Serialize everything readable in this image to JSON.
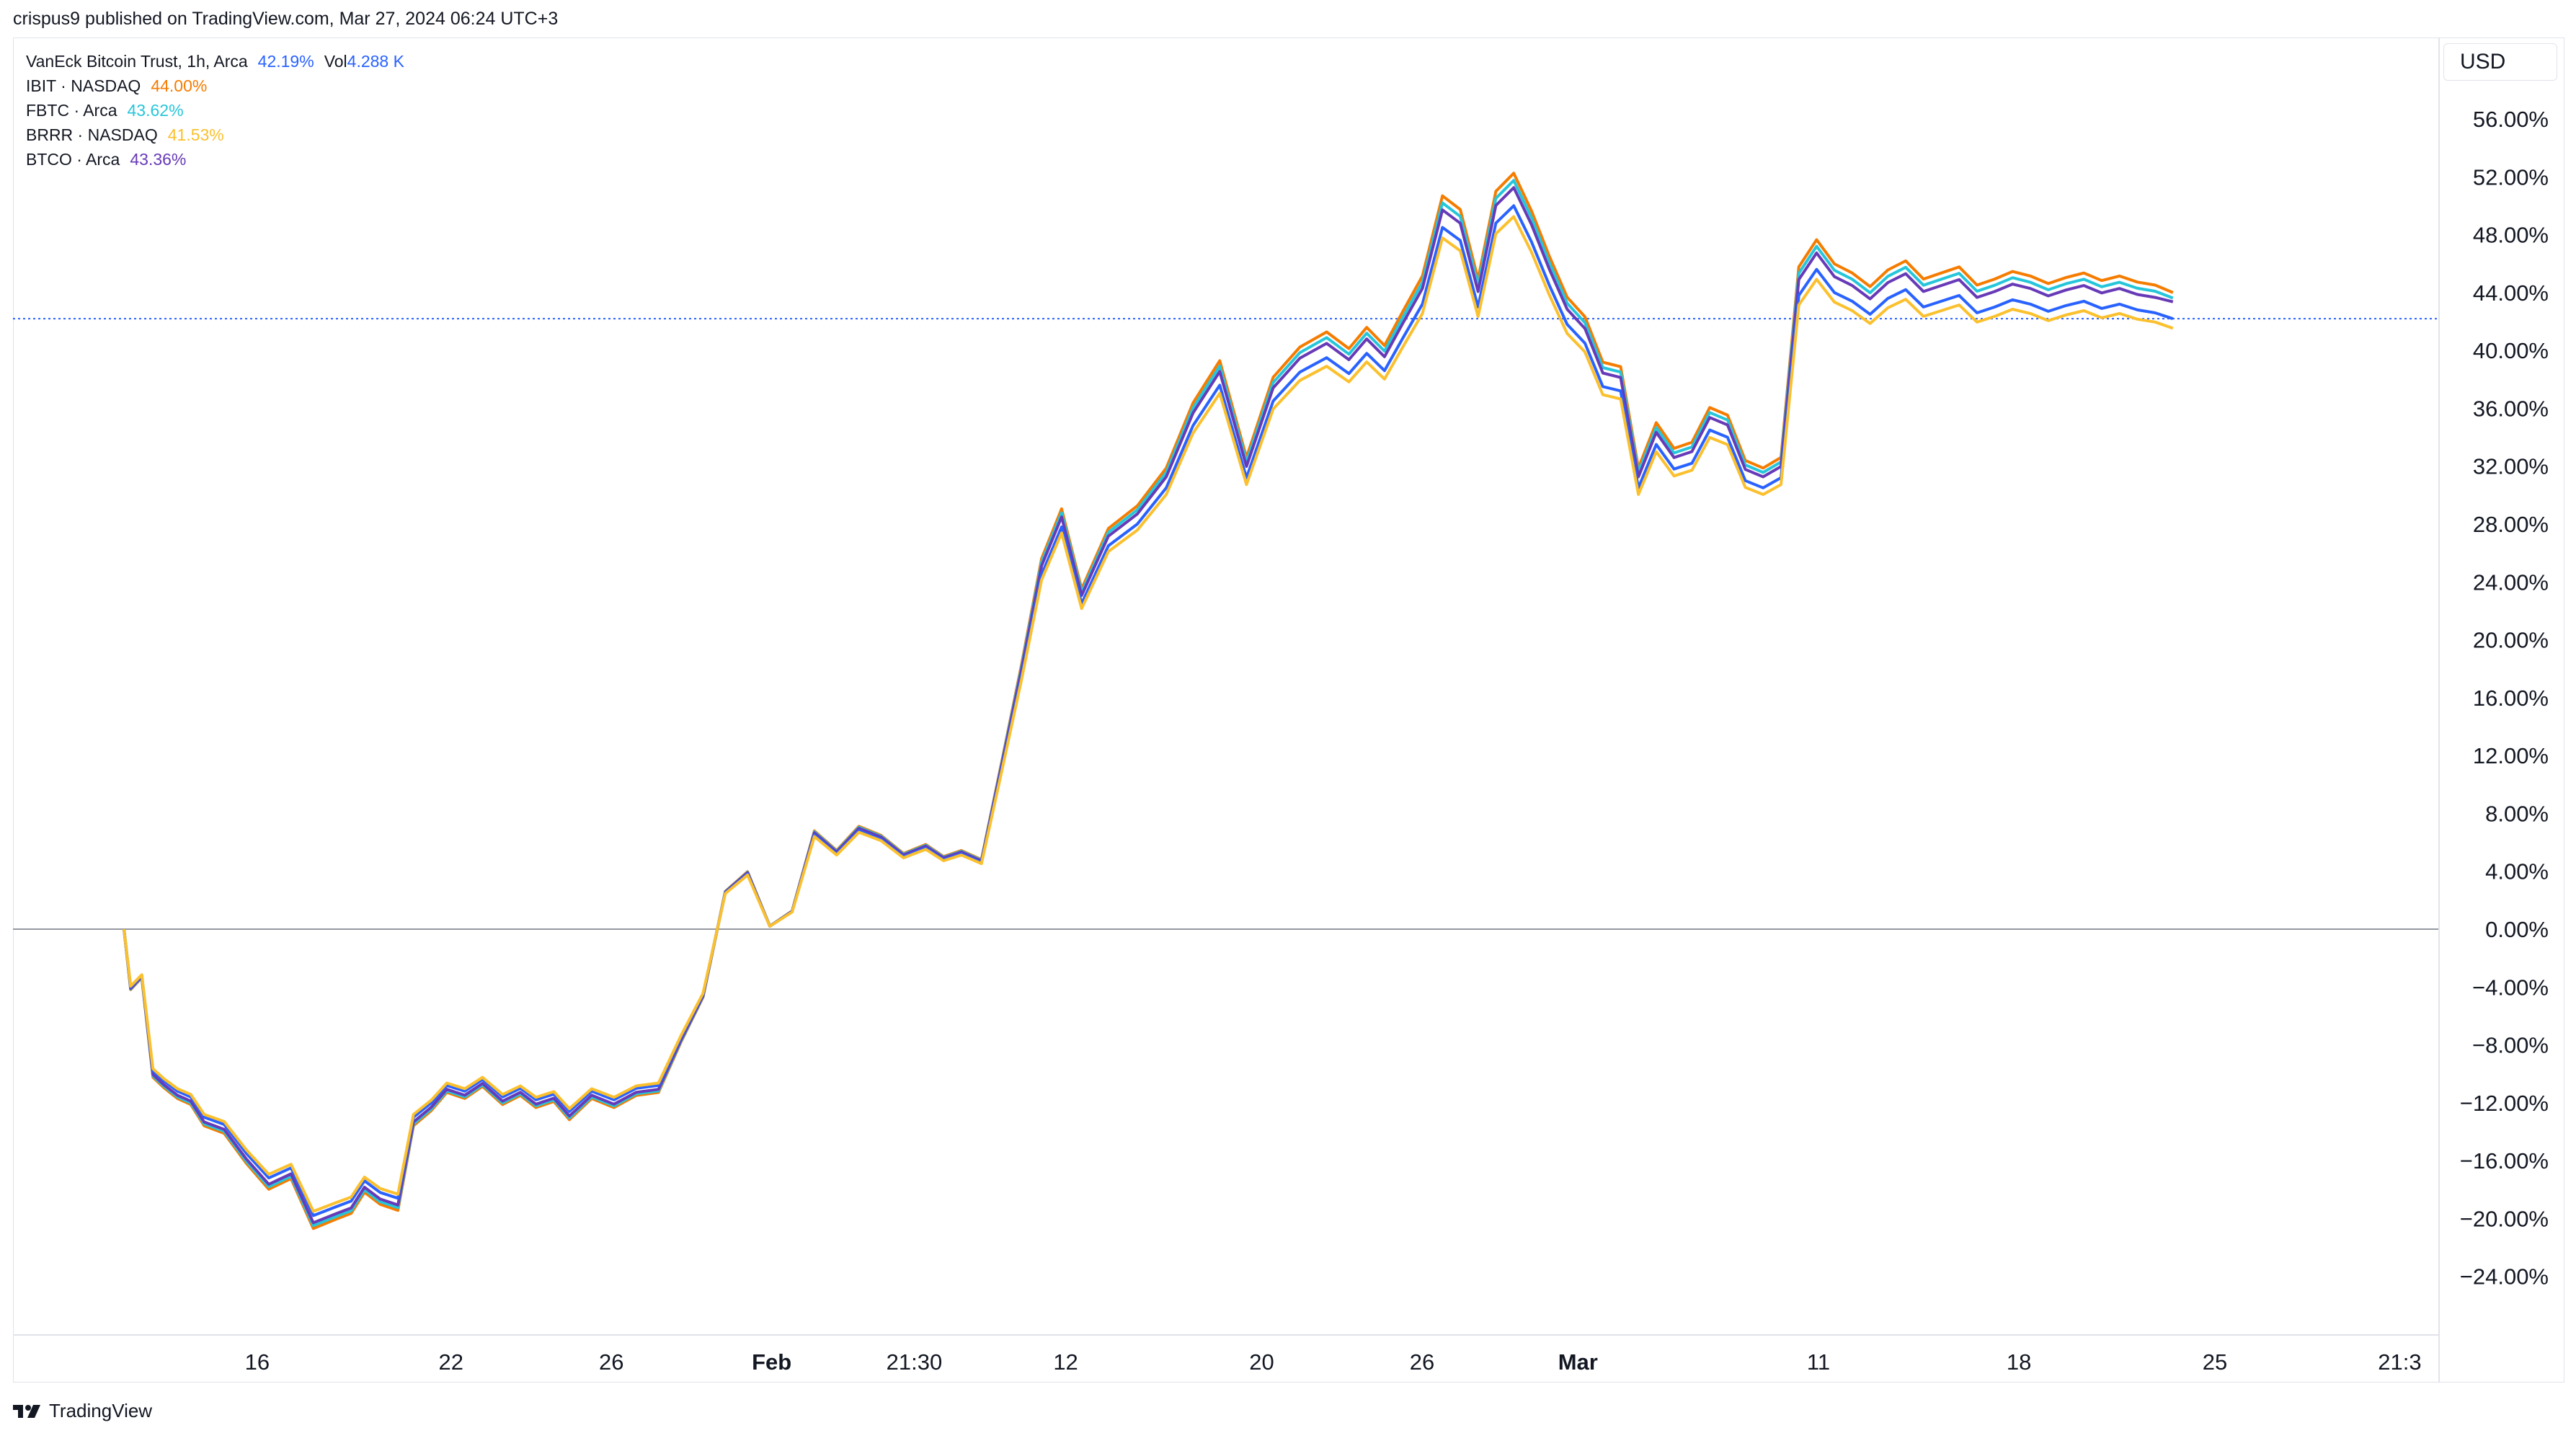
{
  "header": {
    "published": "crispus9 published on TradingView.com, Mar 27, 2024 06:24 UTC+3"
  },
  "legend": {
    "main": {
      "name": "VanEck Bitcoin Trust, 1h, Arca",
      "value": "42.19%",
      "vol_label": "Vol",
      "vol_value": "4.288 K"
    },
    "items": [
      {
        "name": "IBIT · NASDAQ",
        "value": "44.00%",
        "color": "#f57c00"
      },
      {
        "name": "FBTC · Arca",
        "value": "43.62%",
        "color": "#26c6da"
      },
      {
        "name": "BRRR · NASDAQ",
        "value": "41.53%",
        "color": "#fbc02d"
      },
      {
        "name": "BTCO · Arca",
        "value": "43.36%",
        "color": "#673ab7"
      }
    ]
  },
  "currency_button": "USD",
  "logo": {
    "text": "TradingView"
  },
  "chart_data": {
    "type": "line",
    "y_unit": "%",
    "ylim": [
      -26,
      58
    ],
    "yticks": [
      56,
      52,
      48,
      44,
      40,
      36,
      32,
      28,
      24,
      20,
      16,
      12,
      8,
      4,
      0,
      -4,
      -8,
      -12,
      -16,
      -20,
      -24
    ],
    "ytick_labels": [
      "56.00%",
      "52.00%",
      "48.00%",
      "44.00%",
      "40.00%",
      "36.00%",
      "32.00%",
      "28.00%",
      "24.00%",
      "20.00%",
      "16.00%",
      "12.00%",
      "8.00%",
      "4.00%",
      "0.00%",
      "−4.00%",
      "−8.00%",
      "−12.00%",
      "−16.00%",
      "−20.00%",
      "−24.00%"
    ],
    "xlim": [
      0,
      100
    ],
    "xticks": [
      {
        "label": "16",
        "x": 2.1,
        "bold": false
      },
      {
        "label": "22",
        "x": 10.8,
        "bold": false
      },
      {
        "label": "26",
        "x": 18.0,
        "bold": false
      },
      {
        "label": "Feb",
        "x": 25.2,
        "bold": true
      },
      {
        "label": "21:30",
        "x": 31.6,
        "bold": false
      },
      {
        "label": "12",
        "x": 38.4,
        "bold": false
      },
      {
        "label": "20",
        "x": 47.2,
        "bold": false
      },
      {
        "label": "26",
        "x": 54.4,
        "bold": false
      },
      {
        "label": "Mar",
        "x": 61.4,
        "bold": true
      },
      {
        "label": "11",
        "x": 72.2,
        "bold": false
      },
      {
        "label": "18",
        "x": 81.2,
        "bold": false
      },
      {
        "label": "25",
        "x": 90.0,
        "bold": false
      },
      {
        "label": "21:3",
        "x": 98.3,
        "bold": false
      }
    ],
    "reference_line_value": 42.19,
    "zero_line_value": 0,
    "base_x": [
      0.0,
      0.3,
      0.8,
      1.3,
      1.8,
      2.4,
      3.0,
      3.6,
      4.5,
      5.5,
      6.5,
      7.5,
      8.5,
      9.5,
      10.2,
      10.8,
      11.5,
      12.3,
      13.0,
      13.8,
      14.5,
      15.3,
      16.1,
      17.0,
      17.8,
      18.5,
      19.3,
      20.0,
      21.0,
      22.0,
      23.0,
      24.0,
      25.0,
      26.0,
      27.0,
      28.0,
      29.0,
      30.0,
      31.0,
      32.0,
      33.0,
      34.0,
      35.0,
      36.0,
      36.8,
      37.6,
      38.5,
      39.4,
      40.3,
      41.2,
      42.1,
      43.0,
      44.2,
      45.5,
      46.8,
      48.0,
      49.2,
      50.4,
      51.6,
      52.8,
      54.0,
      55.0,
      55.8,
      56.6,
      57.4,
      58.3,
      59.2,
      60.0,
      60.8,
      61.6,
      62.4,
      63.2,
      64.0,
      64.8,
      65.6,
      66.4,
      67.2,
      68.0,
      68.8,
      69.6,
      70.4,
      71.2,
      72.0,
      72.8,
      73.6,
      74.4,
      75.2,
      76.0,
      76.8,
      77.6,
      78.4,
      79.2,
      80.0,
      80.8,
      81.6,
      82.4,
      83.2,
      84.0,
      84.8,
      85.6,
      86.4,
      87.2,
      88.0,
      88.8,
      89.6,
      90.4,
      91.2,
      92.0
    ],
    "base_y": [
      0.0,
      -4.0,
      -3.2,
      -9.8,
      -10.5,
      -11.2,
      -11.6,
      -13.0,
      -13.5,
      -15.5,
      -17.2,
      -16.5,
      -19.8,
      -19.2,
      -18.8,
      -17.4,
      -18.2,
      -18.6,
      -13.0,
      -12.0,
      -10.8,
      -11.2,
      -10.4,
      -11.6,
      -11.0,
      -11.8,
      -11.4,
      -12.6,
      -11.2,
      -11.8,
      -11.0,
      -10.8,
      -7.5,
      -4.5,
      2.5,
      3.8,
      0.2,
      1.2,
      6.5,
      5.2,
      6.8,
      6.2,
      5.0,
      5.6,
      4.8,
      5.2,
      4.6,
      11.0,
      17.5,
      24.5,
      27.8,
      22.5,
      26.5,
      28.0,
      30.5,
      34.8,
      37.6,
      31.2,
      36.5,
      38.5,
      39.5,
      38.4,
      39.8,
      38.6,
      40.8,
      43.2,
      48.5,
      47.6,
      43.0,
      48.8,
      50.0,
      47.5,
      44.5,
      41.8,
      40.5,
      37.5,
      37.2,
      30.5,
      33.5,
      31.8,
      32.2,
      34.5,
      34.0,
      31.0,
      30.5,
      31.2,
      43.8,
      45.6,
      44.0,
      43.4,
      42.5,
      43.6,
      44.2,
      43.0,
      43.4,
      43.8,
      42.6,
      43.0,
      43.5,
      43.2,
      42.7,
      43.1,
      43.4,
      42.9,
      43.2,
      42.8,
      42.6,
      42.2
    ],
    "series": [
      {
        "name": "IBIT · NASDAQ",
        "color": "#f57c00",
        "scale": 1.045,
        "final": 44.0
      },
      {
        "name": "FBTC · Arca",
        "color": "#26c6da",
        "scale": 1.035,
        "final": 43.62
      },
      {
        "name": "BTCO · Arca",
        "color": "#673ab7",
        "scale": 1.025,
        "final": 43.36
      },
      {
        "name": "VanEck Bitcoin Trust, 1h, Arca",
        "color": "#2962ff",
        "scale": 1.0,
        "final": 42.19
      },
      {
        "name": "BRRR · NASDAQ",
        "color": "#fbc02d",
        "scale": 0.985,
        "final": 41.53
      }
    ]
  }
}
